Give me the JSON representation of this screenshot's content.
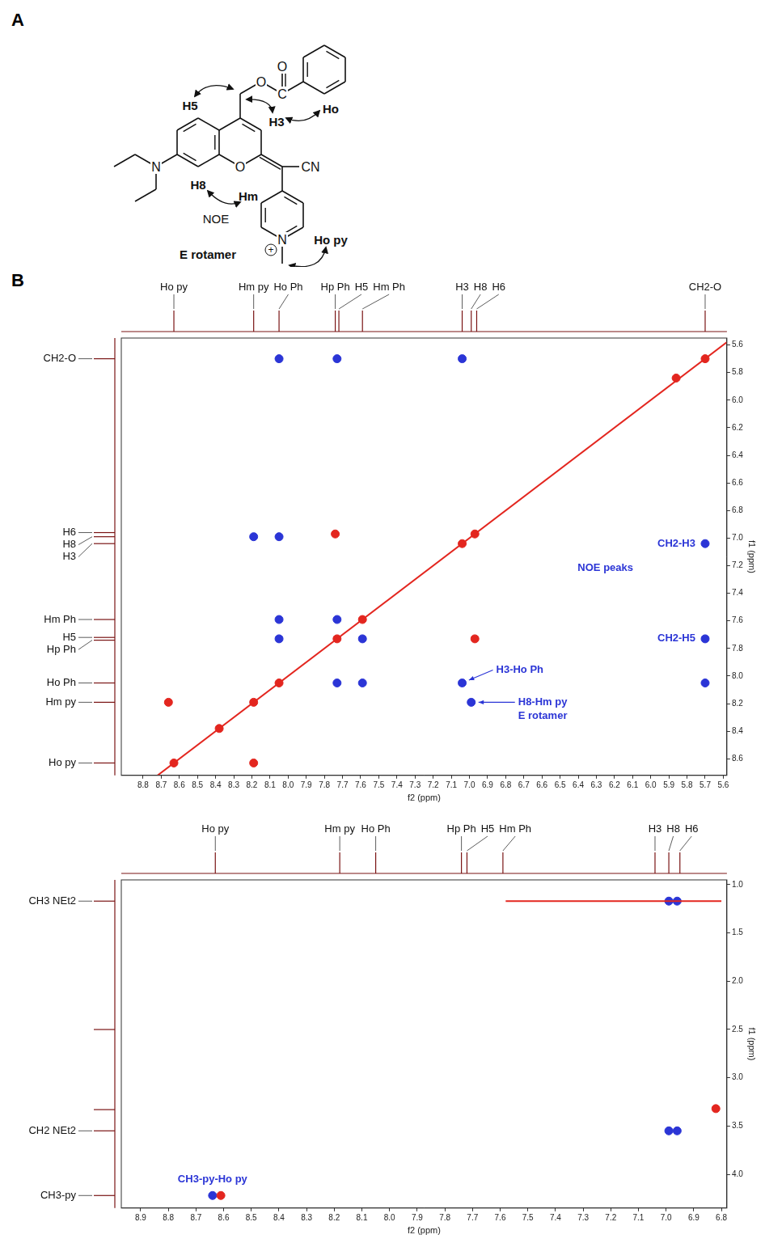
{
  "panel_A": {
    "label": "A",
    "atoms": [
      "O",
      "C",
      "O",
      "N",
      "O",
      "CN",
      "N",
      "+"
    ],
    "protons": [
      "H5",
      "H3",
      "Ho",
      "H8",
      "Hm",
      "Ho py"
    ],
    "annotations": [
      "NOE",
      "E rotamer"
    ]
  },
  "panel_B": {
    "label": "B"
  },
  "chart_data": [
    {
      "type": "scatter",
      "x_label": "f2 (ppm)",
      "y_label": "f1 (ppm)",
      "xlim": [
        8.92,
        5.58
      ],
      "ylim": [
        8.72,
        5.55
      ],
      "xticks": [
        8.8,
        8.7,
        8.6,
        8.5,
        8.4,
        8.3,
        8.2,
        8.1,
        {
          "value": 8,
          "label": "8.0"
        },
        7.9,
        7.8,
        7.7,
        7.6,
        7.5,
        7.4,
        7.3,
        7.2,
        7.1,
        {
          "value": 7,
          "label": "7.0"
        },
        6.9,
        6.8,
        6.7,
        6.6,
        6.5,
        6.4,
        6.3,
        6.2,
        6.1,
        {
          "value": 6,
          "label": "6.0"
        },
        5.9,
        5.8,
        5.7,
        5.6
      ],
      "yticks": [
        5.6,
        5.8,
        {
          "value": 6,
          "label": "6.0"
        },
        6.2,
        6.4,
        6.6,
        6.8,
        {
          "value": 7,
          "label": "7.0"
        },
        7.2,
        7.4,
        7.6,
        7.8,
        {
          "value": 8,
          "label": "8.0"
        },
        8.2,
        8.4,
        8.6
      ],
      "grid": false,
      "top_spectrum": [
        {
          "ppm": 8.63,
          "label": "Ho py"
        },
        {
          "ppm": 8.19,
          "label": "Hm py"
        },
        {
          "ppm": 8.05,
          "label": "Ho Ph"
        },
        {
          "ppm": 7.74,
          "label": "Hp Ph"
        },
        {
          "ppm": 7.72,
          "label": "H5"
        },
        {
          "ppm": 7.59,
          "label": "Hm Ph"
        },
        {
          "ppm": 7.04,
          "label": "H3"
        },
        {
          "ppm": 6.99,
          "label": "H8"
        },
        {
          "ppm": 6.96,
          "label": "H6"
        },
        {
          "ppm": 5.7,
          "label": "CH2-O"
        }
      ],
      "left_spectrum": [
        {
          "ppm": 5.7,
          "label": "CH2-O"
        },
        {
          "ppm": 6.96,
          "label": "H6"
        },
        {
          "ppm": 6.99,
          "label": "H8"
        },
        {
          "ppm": 7.04,
          "label": "H3"
        },
        {
          "ppm": 7.59,
          "label": "Hm Ph"
        },
        {
          "ppm": 7.72,
          "label": "H5"
        },
        {
          "ppm": 7.74,
          "label": "Hp Ph"
        },
        {
          "ppm": 8.05,
          "label": "Ho Ph"
        },
        {
          "ppm": 8.19,
          "label": "Hm py"
        },
        {
          "ppm": 8.63,
          "label": "Ho py"
        }
      ],
      "series": [
        {
          "type": "line",
          "color": "#e3261f",
          "marker": "none",
          "line_style": "solid",
          "x": [
            8.72,
            5.58
          ],
          "y": [
            8.72,
            5.58
          ]
        },
        {
          "type": "scatter",
          "color": "#e3261f",
          "marker": "circle",
          "x": [
            8.63,
            8.19,
            8.05,
            7.73,
            7.59,
            7.04,
            6.97,
            5.7,
            5.86,
            8.66,
            8.19,
            7.74,
            6.97,
            8.38
          ],
          "y": [
            8.63,
            8.19,
            8.05,
            7.73,
            7.59,
            7.04,
            6.97,
            5.7,
            5.84,
            8.19,
            8.63,
            6.97,
            7.73,
            8.38
          ]
        },
        {
          "type": "scatter",
          "color": "#2b35d6",
          "marker": "circle",
          "x": [
            8.05,
            7.73,
            7.04,
            5.7,
            5.7,
            5.7,
            8.19,
            8.05,
            7.04,
            6.99,
            8.05,
            8.05,
            7.59,
            7.73,
            7.59,
            7.73
          ],
          "y": [
            5.7,
            5.7,
            5.7,
            7.04,
            7.73,
            8.05,
            6.99,
            6.99,
            8.05,
            8.19,
            7.59,
            7.73,
            8.05,
            8.05,
            7.73,
            7.59
          ]
        }
      ],
      "annotations": [
        {
          "text": "NOE peaks",
          "x": 6.25,
          "y": 7.22
        },
        {
          "text": "CH2-H3",
          "x": 5.7,
          "y": 7.04
        },
        {
          "text": "CH2-H5",
          "x": 5.7,
          "y": 7.73
        },
        {
          "text": "H3-Ho Ph",
          "x": 7.04,
          "y": 8.05
        },
        {
          "text": "H8-Hm py",
          "x": 6.99,
          "y": 8.19
        },
        {
          "text": "E rotamer",
          "x": 6.99,
          "y": 8.19
        }
      ]
    },
    {
      "type": "scatter",
      "x_label": "f2 (ppm)",
      "y_label": "f1 (ppm)",
      "xlim": [
        8.97,
        6.78
      ],
      "ylim": [
        4.35,
        0.95
      ],
      "xticks": [
        8.9,
        8.8,
        8.7,
        8.6,
        8.5,
        8.4,
        8.3,
        8.2,
        8.1,
        {
          "value": 8,
          "label": "8.0"
        },
        7.9,
        7.8,
        7.7,
        7.6,
        7.5,
        7.4,
        7.3,
        7.2,
        7.1,
        {
          "value": 7,
          "label": "7.0"
        },
        6.9,
        6.8
      ],
      "yticks": [
        {
          "value": 1,
          "label": "1.0"
        },
        1.5,
        {
          "value": 2,
          "label": "2.0"
        },
        2.5,
        {
          "value": 3,
          "label": "3.0"
        },
        3.5,
        {
          "value": 4,
          "label": "4.0"
        }
      ],
      "grid": false,
      "top_spectrum": [
        {
          "ppm": 8.63,
          "label": "Ho py"
        },
        {
          "ppm": 8.18,
          "label": "Hm py"
        },
        {
          "ppm": 8.05,
          "label": "Ho Ph"
        },
        {
          "ppm": 7.74,
          "label": "Hp Ph"
        },
        {
          "ppm": 7.72,
          "label": "H5"
        },
        {
          "ppm": 7.59,
          "label": "Hm Ph"
        },
        {
          "ppm": 7.04,
          "label": "H3"
        },
        {
          "ppm": 6.99,
          "label": "H8"
        },
        {
          "ppm": 6.95,
          "label": "H6"
        }
      ],
      "left_spectrum": [
        {
          "ppm": 1.17,
          "label": "CH3 NEt2"
        },
        {
          "ppm": 2.5,
          "label": null
        },
        {
          "ppm": 3.33,
          "label": null
        },
        {
          "ppm": 3.55,
          "label": "CH2 NEt2"
        },
        {
          "ppm": 4.22,
          "label": "CH3-py"
        }
      ],
      "series": [
        {
          "type": "line",
          "color": "#e3261f",
          "marker": "none",
          "line_style": "solid",
          "x": [
            7.58,
            6.8
          ],
          "y": [
            1.17,
            1.17
          ]
        },
        {
          "type": "scatter",
          "color": "#e3261f",
          "marker": "circle",
          "x": [
            8.61,
            6.82
          ],
          "y": [
            4.22,
            3.32
          ]
        },
        {
          "type": "scatter",
          "color": "#2b35d6",
          "marker": "circle",
          "x": [
            6.99,
            6.96,
            6.99,
            6.96,
            8.64
          ],
          "y": [
            1.17,
            1.17,
            3.55,
            3.55,
            4.22
          ]
        }
      ],
      "annotations": [
        {
          "text": "CH3-py-Ho py",
          "x": 8.64,
          "y": 4.22
        }
      ]
    }
  ]
}
